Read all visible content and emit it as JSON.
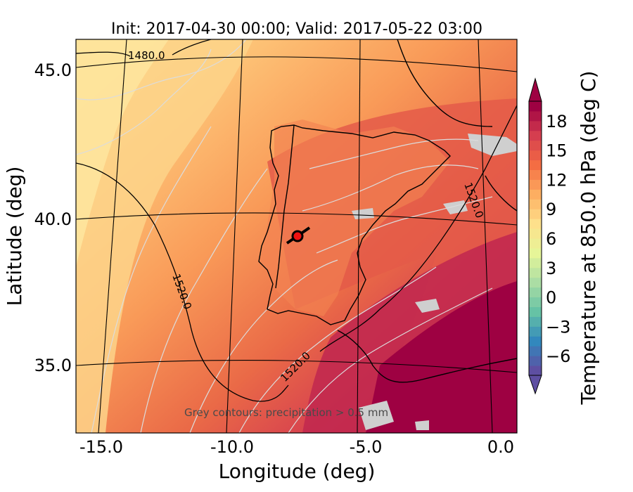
{
  "title": "Init: 2017-04-30 00:00; Valid: 2017-05-22 03:00",
  "xlabel": "Longitude (deg)",
  "ylabel": "Latitude (deg)",
  "x_ticks": [
    "-15.0",
    "-10.0",
    "-5.0",
    "0.0"
  ],
  "y_ticks": [
    "45.0",
    "40.0",
    "35.0"
  ],
  "colorbar": {
    "label": "Temperature at 850.0 hPa (deg C)",
    "ticks": [
      "18",
      "15",
      "12",
      "9",
      "6",
      "3",
      "0",
      "−3",
      "−6"
    ],
    "tick_values": [
      18,
      15,
      12,
      9,
      6,
      3,
      0,
      -3,
      -6
    ],
    "range": [
      -8,
      20
    ],
    "extend": "both"
  },
  "contour_labels": [
    "1480.0",
    "1520.0",
    "1520.0",
    "1520.0"
  ],
  "note": "Grey contours: precipitation > 0.5 mm",
  "marker": {
    "lon": -7.6,
    "lat": 39.3,
    "color": "#ee1111"
  },
  "map_extent": {
    "lon": [
      -16,
      0
    ],
    "lat": [
      33,
      46
    ]
  }
}
